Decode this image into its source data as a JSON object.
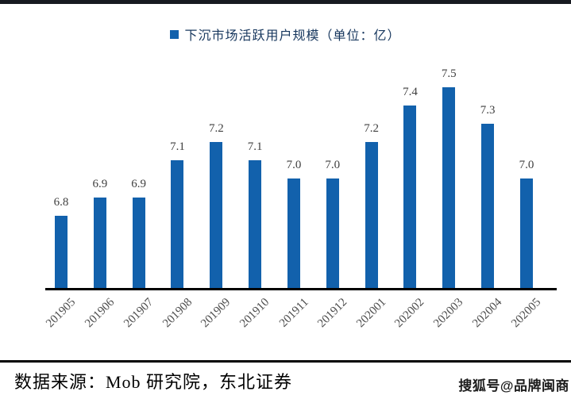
{
  "colors": {
    "bar": "#1261ac",
    "legend_text": "#17375e",
    "value_label": "#3f3f3f",
    "tick_label": "#4d4d4d",
    "axis_line": "#000000",
    "top_rule": "#171a21",
    "bottom_rule": "#000000",
    "background": "#ffffff"
  },
  "legend": {
    "label": "下沉市场活跃用户规模（单位：亿）"
  },
  "chart_data": {
    "type": "bar",
    "title": "下沉市场活跃用户规模（单位：亿）",
    "categories": [
      "201905",
      "201906",
      "201907",
      "201908",
      "201909",
      "201910",
      "201911",
      "201912",
      "202001",
      "202002",
      "202003",
      "202004",
      "202005"
    ],
    "values": [
      6.8,
      6.9,
      6.9,
      7.1,
      7.2,
      7.1,
      7.0,
      7.0,
      7.2,
      7.4,
      7.5,
      7.3,
      7.0
    ],
    "xlabel": "",
    "ylabel": "",
    "ylim": [
      6.4,
      7.6
    ],
    "grid": false,
    "y_axis_visible": false,
    "data_labels": true,
    "legend_position": "top-center",
    "tick_label_rotation_deg": -45
  },
  "footer": {
    "source": "数据来源：Mob 研究院，东北证券"
  },
  "watermark": {
    "text": "搜狐号@品牌闽商"
  }
}
